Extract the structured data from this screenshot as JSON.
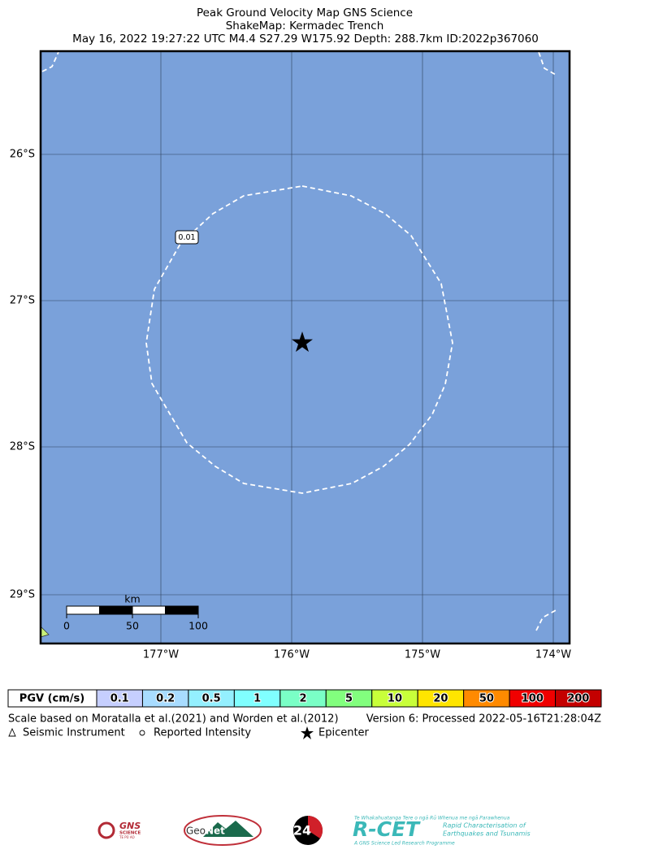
{
  "header": {
    "title": "Peak Ground Velocity Map GNS Science",
    "subtitle": "ShakeMap: Kermadec Trench",
    "event": "May 16, 2022 19:27:22 UTC M4.4 S27.29 W175.92 Depth: 288.7km ID:2022p367060"
  },
  "map": {
    "lat_labels": [
      "26°S",
      "27°S",
      "28°S",
      "29°S"
    ],
    "lon_labels": [
      "177°W",
      "176°W",
      "175°W",
      "174°W"
    ],
    "contour_label": "0.01",
    "scale_bar": {
      "unit": "km",
      "labels": [
        "0",
        "50",
        "100"
      ]
    }
  },
  "legend": {
    "title": "PGV (cm/s)",
    "bins": [
      {
        "label": "0.1",
        "color": "#c6cfff"
      },
      {
        "label": "0.2",
        "color": "#a8dcff"
      },
      {
        "label": "0.5",
        "color": "#94f0ff"
      },
      {
        "label": "1",
        "color": "#80ffff"
      },
      {
        "label": "2",
        "color": "#7affc6"
      },
      {
        "label": "5",
        "color": "#82ff7e"
      },
      {
        "label": "10",
        "color": "#c8ff3a"
      },
      {
        "label": "20",
        "color": "#ffe500"
      },
      {
        "label": "50",
        "color": "#ff8a00"
      },
      {
        "label": "100",
        "color": "#f00000"
      },
      {
        "label": "200",
        "color": "#c40000"
      }
    ]
  },
  "notes": {
    "reference": "Scale based on Moratalla et al.(2021) and Worden et al.(2012)",
    "version": "Version 6: Processed 2022-05-16T21:28:04Z",
    "symbols": [
      "Seismic Instrument",
      "Reported Intensity",
      "Epicenter"
    ]
  },
  "logos": {
    "gns": "GNS",
    "gns_sub": "SCIENCE",
    "gns_maori": "TE PŪ AO",
    "geonet_a": "Geo",
    "geonet_b": "Net",
    "twentyfour": "24",
    "rcet": "R-CET",
    "rcet_maori": "Te Whakahuatanga Tere o ngā Rū Whenua me ngā Parawhenua",
    "rcet_desc_1": "Rapid Characterisation of",
    "rcet_desc_2": "Earthquakes and Tsunamis",
    "rcet_programme": "A GNS Science Led Research Programme"
  }
}
